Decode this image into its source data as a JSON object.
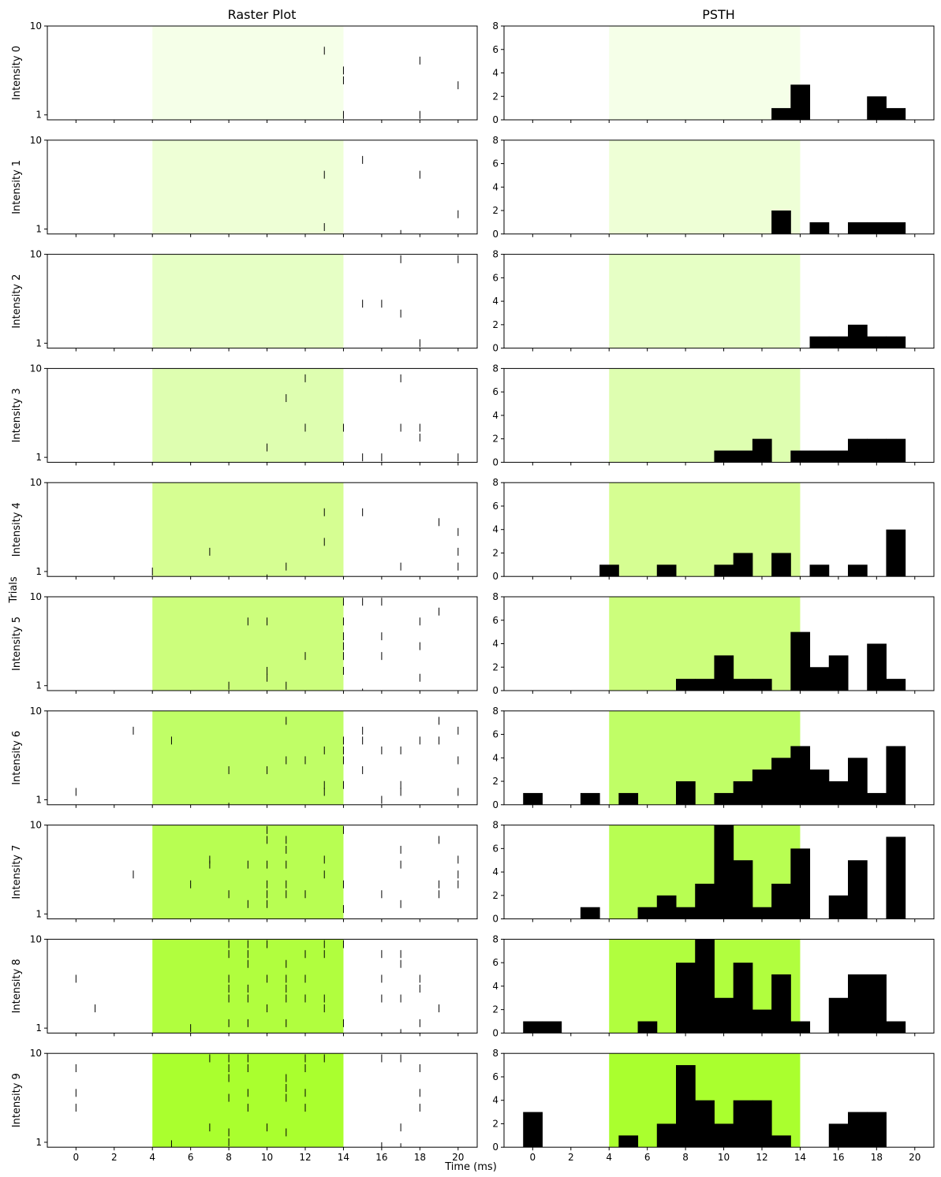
{
  "figure": {
    "raster_title": "Raster Plot",
    "psth_title": "PSTH",
    "ylabel": "Trials",
    "xlabel": "Time (ms)",
    "shade_colors": [
      "#f5ffe8",
      "#eeffd6",
      "#e6ffc5",
      "#defeb0",
      "#d6fe92",
      "#ccfe7c",
      "#c0fe66",
      "#b8fe52",
      "#b1fe3e",
      "#aaff2e"
    ]
  },
  "chart_data": {
    "type": "raster+histogram",
    "stimulus_window": [
      4,
      14
    ],
    "raster_xlim": [
      -1.5,
      21.0
    ],
    "raster_ylim": [
      0.5,
      10.0
    ],
    "raster_yticks": [
      1,
      10
    ],
    "psth_xlim": [
      -1.5,
      21.0
    ],
    "psth_ylim": [
      0,
      8
    ],
    "psth_yticks": [
      0,
      2,
      4,
      6,
      8
    ],
    "xticks": [
      0,
      2,
      4,
      6,
      8,
      10,
      12,
      14,
      16,
      18,
      20
    ],
    "bin_starts": [
      -0.5,
      0.5,
      1.5,
      2.5,
      3.5,
      4.5,
      5.5,
      6.5,
      7.5,
      8.5,
      9.5,
      10.5,
      11.5,
      12.5,
      13.5,
      14.5,
      15.5,
      16.5,
      17.5,
      18.5
    ],
    "bin_width": 1,
    "intensities": [
      {
        "label": "Intensity 0",
        "spikes": [
          [
            13,
            7.5
          ],
          [
            14,
            5.5
          ],
          [
            14,
            4.5
          ],
          [
            18,
            6.5
          ],
          [
            20,
            4
          ],
          [
            14,
            1
          ],
          [
            18,
            1
          ]
        ],
        "psth": [
          0,
          0,
          0,
          0,
          0,
          0,
          0,
          0,
          0,
          0,
          0,
          0,
          0,
          1,
          3,
          0,
          0,
          0,
          2,
          1
        ]
      },
      {
        "label": "Intensity 1",
        "spikes": [
          [
            15,
            8
          ],
          [
            13,
            6.5
          ],
          [
            18,
            6.5
          ],
          [
            20,
            2.5
          ],
          [
            13,
            1.2
          ],
          [
            17,
            0.5
          ]
        ],
        "psth": [
          0,
          0,
          0,
          0,
          0,
          0,
          0,
          0,
          0,
          0,
          0,
          0,
          0,
          2,
          0,
          1,
          0,
          1,
          1,
          1
        ]
      },
      {
        "label": "Intensity 2",
        "spikes": [
          [
            17,
            9.5
          ],
          [
            20,
            9.5
          ],
          [
            15,
            5
          ],
          [
            16,
            5
          ],
          [
            17,
            4
          ],
          [
            18,
            1
          ]
        ],
        "psth": [
          0,
          0,
          0,
          0,
          0,
          0,
          0,
          0,
          0,
          0,
          0,
          0,
          0,
          0,
          0,
          1,
          1,
          2,
          1,
          1
        ]
      },
      {
        "label": "Intensity 3",
        "spikes": [
          [
            12,
            9
          ],
          [
            17,
            9
          ],
          [
            11,
            7
          ],
          [
            12,
            4
          ],
          [
            14,
            4
          ],
          [
            17,
            4
          ],
          [
            18,
            4
          ],
          [
            18,
            3
          ],
          [
            10,
            2
          ],
          [
            15,
            1
          ],
          [
            16,
            1
          ],
          [
            20,
            1
          ]
        ],
        "psth": [
          0,
          0,
          0,
          0,
          0,
          0,
          0,
          0,
          0,
          0,
          1,
          1,
          2,
          0,
          1,
          1,
          1,
          2,
          2,
          2
        ]
      },
      {
        "label": "Intensity 4",
        "spikes": [
          [
            13,
            7
          ],
          [
            15,
            7
          ],
          [
            19,
            6
          ],
          [
            20,
            5
          ],
          [
            13,
            4
          ],
          [
            7,
            3
          ],
          [
            20,
            3
          ],
          [
            11,
            1.5
          ],
          [
            17,
            1.5
          ],
          [
            20,
            1.5
          ],
          [
            4,
            1
          ],
          [
            10,
            0.3
          ]
        ],
        "psth": [
          0,
          0,
          0,
          0,
          1,
          0,
          0,
          1,
          0,
          0,
          1,
          2,
          0,
          2,
          0,
          1,
          0,
          1,
          0,
          4
        ]
      },
      {
        "label": "Intensity 5",
        "spikes": [
          [
            14,
            9.5
          ],
          [
            15,
            9.5
          ],
          [
            16,
            9.5
          ],
          [
            19,
            8.5
          ],
          [
            9,
            7.5
          ],
          [
            10,
            7.5
          ],
          [
            14,
            7.5
          ],
          [
            18,
            7.5
          ],
          [
            14,
            6
          ],
          [
            16,
            6
          ],
          [
            18,
            5
          ],
          [
            14,
            5
          ],
          [
            12,
            4
          ],
          [
            14,
            4
          ],
          [
            16,
            4
          ],
          [
            10,
            2.5
          ],
          [
            14,
            2.5
          ],
          [
            10,
            1.8
          ],
          [
            18,
            1.8
          ],
          [
            8,
            1
          ],
          [
            11,
            1
          ],
          [
            15,
            0.3
          ]
        ],
        "psth": [
          0,
          0,
          0,
          0,
          0,
          0,
          0,
          0,
          1,
          1,
          3,
          1,
          1,
          0,
          5,
          2,
          3,
          0,
          4,
          1
        ]
      },
      {
        "label": "Intensity 6",
        "spikes": [
          [
            3,
            8
          ],
          [
            11,
            9
          ],
          [
            19,
            9
          ],
          [
            5,
            7
          ],
          [
            15,
            8
          ],
          [
            20,
            8
          ],
          [
            14,
            7
          ],
          [
            15,
            7
          ],
          [
            18,
            7
          ],
          [
            19,
            7
          ],
          [
            13,
            6
          ],
          [
            14,
            6
          ],
          [
            16,
            6
          ],
          [
            17,
            6
          ],
          [
            11,
            5
          ],
          [
            12,
            5
          ],
          [
            14,
            5
          ],
          [
            20,
            5
          ],
          [
            8,
            4
          ],
          [
            10,
            4
          ],
          [
            15,
            4
          ],
          [
            13,
            2.5
          ],
          [
            14,
            2.5
          ],
          [
            17,
            2.5
          ],
          [
            0,
            1.8
          ],
          [
            13,
            1.8
          ],
          [
            17,
            1.8
          ],
          [
            20,
            1.8
          ],
          [
            16,
            1
          ],
          [
            8,
            0.3
          ]
        ],
        "psth": [
          1,
          0,
          0,
          1,
          0,
          1,
          0,
          0,
          2,
          0,
          1,
          2,
          3,
          4,
          5,
          3,
          2,
          4,
          1,
          5
        ]
      },
      {
        "label": "Intensity 7",
        "spikes": [
          [
            10,
            9.5
          ],
          [
            14,
            9.5
          ],
          [
            10,
            8.5
          ],
          [
            11,
            8.5
          ],
          [
            19,
            8.5
          ],
          [
            11,
            7.5
          ],
          [
            17,
            7.5
          ],
          [
            7,
            6.5
          ],
          [
            13,
            6.5
          ],
          [
            20,
            6.5
          ],
          [
            7,
            6
          ],
          [
            9,
            6
          ],
          [
            10,
            6
          ],
          [
            11,
            6
          ],
          [
            17,
            6
          ],
          [
            3,
            5
          ],
          [
            13,
            5
          ],
          [
            20,
            5
          ],
          [
            10,
            4
          ],
          [
            6,
            4
          ],
          [
            11,
            4
          ],
          [
            14,
            4
          ],
          [
            19,
            4
          ],
          [
            20,
            4
          ],
          [
            8,
            3
          ],
          [
            10,
            3
          ],
          [
            11,
            3
          ],
          [
            12,
            3
          ],
          [
            16,
            3
          ],
          [
            19,
            3
          ],
          [
            9,
            2
          ],
          [
            10,
            2
          ],
          [
            17,
            2
          ],
          [
            14,
            1.5
          ]
        ],
        "psth": [
          0,
          0,
          0,
          1,
          0,
          0,
          1,
          2,
          1,
          3,
          8,
          5,
          1,
          3,
          6,
          0,
          2,
          5,
          0,
          7
        ]
      },
      {
        "label": "Intensity 8",
        "spikes": [
          [
            8,
            9.5
          ],
          [
            9,
            9.5
          ],
          [
            10,
            9.5
          ],
          [
            13,
            9.5
          ],
          [
            14,
            9.5
          ],
          [
            8,
            8.5
          ],
          [
            9,
            8.5
          ],
          [
            12,
            8.5
          ],
          [
            13,
            8.5
          ],
          [
            16,
            8.5
          ],
          [
            17,
            8.5
          ],
          [
            9,
            7.5
          ],
          [
            11,
            7.5
          ],
          [
            17,
            7.5
          ],
          [
            0,
            6
          ],
          [
            8,
            6
          ],
          [
            10,
            6
          ],
          [
            11,
            6
          ],
          [
            12,
            6
          ],
          [
            16,
            6
          ],
          [
            18,
            6
          ],
          [
            8,
            5
          ],
          [
            9,
            5
          ],
          [
            11,
            5
          ],
          [
            18,
            5
          ],
          [
            8,
            4
          ],
          [
            9,
            4
          ],
          [
            11,
            4
          ],
          [
            12,
            4
          ],
          [
            13,
            4
          ],
          [
            16,
            4
          ],
          [
            17,
            4
          ],
          [
            1,
            3
          ],
          [
            10,
            3
          ],
          [
            13,
            3
          ],
          [
            19,
            3
          ],
          [
            8,
            1.5
          ],
          [
            9,
            1.5
          ],
          [
            11,
            1.5
          ],
          [
            14,
            1.5
          ],
          [
            18,
            1.5
          ],
          [
            6,
            1
          ],
          [
            17,
            0.5
          ]
        ],
        "psth": [
          1,
          1,
          0,
          0,
          0,
          0,
          1,
          0,
          6,
          8,
          3,
          6,
          2,
          5,
          1,
          0,
          3,
          5,
          5,
          1
        ]
      },
      {
        "label": "Intensity 9",
        "spikes": [
          [
            7,
            9.5
          ],
          [
            8,
            9.5
          ],
          [
            9,
            9.5
          ],
          [
            12,
            9.5
          ],
          [
            13,
            9.5
          ],
          [
            16,
            9.5
          ],
          [
            17,
            9.5
          ],
          [
            0,
            8.5
          ],
          [
            8,
            8.5
          ],
          [
            9,
            8.5
          ],
          [
            12,
            8.5
          ],
          [
            18,
            8.5
          ],
          [
            8,
            7.5
          ],
          [
            11,
            7.5
          ],
          [
            11,
            6.5
          ],
          [
            0,
            6
          ],
          [
            9,
            6
          ],
          [
            12,
            6
          ],
          [
            18,
            6
          ],
          [
            8,
            5.5
          ],
          [
            11,
            5.5
          ],
          [
            0,
            4.5
          ],
          [
            9,
            4.5
          ],
          [
            12,
            4.5
          ],
          [
            18,
            4.5
          ],
          [
            7,
            2.5
          ],
          [
            10,
            2.5
          ],
          [
            17,
            2.5
          ],
          [
            8,
            2
          ],
          [
            11,
            2
          ],
          [
            5,
            0.8
          ],
          [
            8,
            1
          ],
          [
            16,
            0.6
          ],
          [
            17,
            0.5
          ]
        ],
        "psth": [
          3,
          0,
          0,
          0,
          0,
          1,
          0,
          2,
          7,
          4,
          2,
          4,
          4,
          1,
          0,
          0,
          2,
          3,
          3,
          0
        ]
      }
    ]
  }
}
